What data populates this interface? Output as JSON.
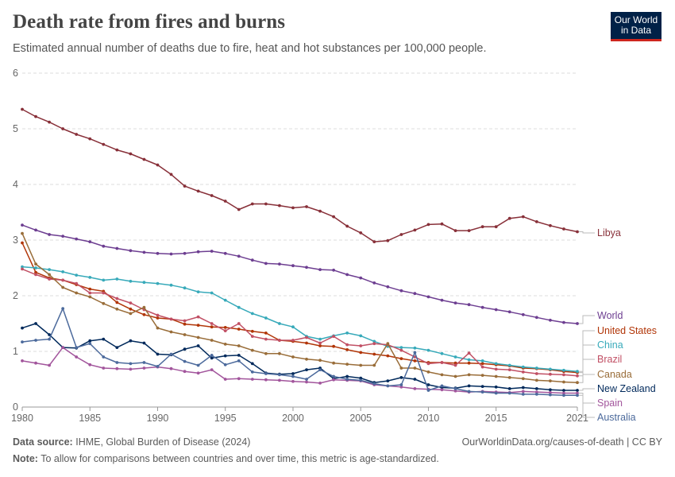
{
  "header": {
    "title": "Death rate from fires and burns",
    "subtitle": "Estimated annual number of deaths due to fire, heat and hot substances per 100,000 people."
  },
  "logo": {
    "line1": "Our World",
    "line2": "in Data"
  },
  "footer": {
    "source_label": "Data source:",
    "source_text": "IHME, Global Burden of Disease (2024)",
    "url_text": "OurWorldinData.org/causes-of-death | CC BY",
    "note_label": "Note:",
    "note_text": "To allow for comparisons between countries and over time, this metric is age-standardized."
  },
  "chart_data": {
    "type": "line",
    "title": "Death rate from fires and burns",
    "ylim": [
      0,
      6
    ],
    "xlim": [
      1980,
      2021
    ],
    "y_ticks": [
      0,
      1,
      2,
      3,
      4,
      5,
      6
    ],
    "x_ticks": [
      1980,
      1985,
      1990,
      1995,
      2000,
      2005,
      2010,
      2015,
      2021
    ],
    "grid": true,
    "legend": "right-end labels",
    "x": [
      1980,
      1981,
      1982,
      1983,
      1984,
      1985,
      1986,
      1987,
      1988,
      1989,
      1990,
      1991,
      1992,
      1993,
      1994,
      1995,
      1996,
      1997,
      1998,
      1999,
      2000,
      2001,
      2002,
      2003,
      2004,
      2005,
      2006,
      2007,
      2008,
      2009,
      2010,
      2011,
      2012,
      2013,
      2014,
      2015,
      2016,
      2017,
      2018,
      2019,
      2020,
      2021
    ],
    "series": [
      {
        "name": "Libya",
        "color": "#883039",
        "values": [
          5.35,
          5.22,
          5.12,
          5.0,
          4.9,
          4.82,
          4.72,
          4.62,
          4.55,
          4.45,
          4.35,
          4.18,
          3.97,
          3.88,
          3.8,
          3.7,
          3.55,
          3.65,
          3.65,
          3.62,
          3.58,
          3.6,
          3.52,
          3.42,
          3.25,
          3.13,
          2.97,
          2.99,
          3.1,
          3.18,
          3.28,
          3.29,
          3.17,
          3.17,
          3.24,
          3.24,
          3.39,
          3.42,
          3.33,
          3.26,
          3.2,
          3.15
        ]
      },
      {
        "name": "World",
        "color": "#6d3e91",
        "values": [
          3.27,
          3.18,
          3.1,
          3.07,
          3.02,
          2.97,
          2.89,
          2.85,
          2.81,
          2.78,
          2.76,
          2.75,
          2.76,
          2.79,
          2.8,
          2.76,
          2.71,
          2.64,
          2.58,
          2.57,
          2.54,
          2.51,
          2.47,
          2.46,
          2.38,
          2.32,
          2.23,
          2.16,
          2.09,
          2.04,
          1.98,
          1.92,
          1.87,
          1.84,
          1.79,
          1.75,
          1.71,
          1.66,
          1.61,
          1.56,
          1.52,
          1.5
        ]
      },
      {
        "name": "United States",
        "color": "#b13507",
        "values": [
          2.95,
          2.42,
          2.32,
          2.28,
          2.2,
          2.12,
          2.08,
          1.88,
          1.76,
          1.66,
          1.6,
          1.58,
          1.49,
          1.47,
          1.44,
          1.43,
          1.4,
          1.36,
          1.33,
          1.2,
          1.18,
          1.15,
          1.1,
          1.09,
          1.03,
          0.98,
          0.95,
          0.92,
          0.87,
          0.83,
          0.8,
          0.8,
          0.79,
          0.79,
          0.78,
          0.76,
          0.74,
          0.7,
          0.69,
          0.67,
          0.64,
          0.62
        ]
      },
      {
        "name": "China",
        "color": "#38aaba",
        "values": [
          2.52,
          2.5,
          2.47,
          2.43,
          2.37,
          2.33,
          2.28,
          2.3,
          2.26,
          2.24,
          2.22,
          2.19,
          2.14,
          2.07,
          2.05,
          1.92,
          1.79,
          1.68,
          1.6,
          1.5,
          1.44,
          1.27,
          1.22,
          1.28,
          1.33,
          1.28,
          1.18,
          1.09,
          1.07,
          1.06,
          1.02,
          0.96,
          0.9,
          0.85,
          0.83,
          0.78,
          0.75,
          0.72,
          0.7,
          0.68,
          0.66,
          0.64
        ]
      },
      {
        "name": "Brazil",
        "color": "#c15065",
        "values": [
          2.48,
          2.38,
          2.3,
          2.28,
          2.22,
          2.05,
          2.05,
          1.95,
          1.87,
          1.75,
          1.65,
          1.58,
          1.55,
          1.62,
          1.5,
          1.37,
          1.5,
          1.27,
          1.22,
          1.2,
          1.2,
          1.25,
          1.15,
          1.27,
          1.12,
          1.1,
          1.14,
          1.12,
          1.02,
          0.9,
          0.78,
          0.8,
          0.75,
          0.97,
          0.72,
          0.68,
          0.67,
          0.63,
          0.6,
          0.59,
          0.58,
          0.56
        ]
      },
      {
        "name": "Canada",
        "color": "#996d39",
        "values": [
          3.12,
          2.57,
          2.38,
          2.15,
          2.05,
          1.98,
          1.86,
          1.76,
          1.68,
          1.79,
          1.42,
          1.35,
          1.3,
          1.25,
          1.2,
          1.13,
          1.1,
          1.02,
          0.96,
          0.96,
          0.9,
          0.86,
          0.84,
          0.79,
          0.77,
          0.75,
          0.75,
          1.14,
          0.7,
          0.7,
          0.63,
          0.58,
          0.55,
          0.58,
          0.57,
          0.55,
          0.53,
          0.51,
          0.48,
          0.47,
          0.45,
          0.44
        ]
      },
      {
        "name": "New Zealand",
        "color": "#00295b",
        "values": [
          1.42,
          1.5,
          1.3,
          1.07,
          1.06,
          1.19,
          1.22,
          1.07,
          1.19,
          1.15,
          0.95,
          0.94,
          1.04,
          1.1,
          0.88,
          0.92,
          0.93,
          0.78,
          0.61,
          0.59,
          0.6,
          0.67,
          0.7,
          0.51,
          0.55,
          0.52,
          0.44,
          0.47,
          0.53,
          0.5,
          0.4,
          0.35,
          0.34,
          0.38,
          0.37,
          0.36,
          0.33,
          0.35,
          0.33,
          0.31,
          0.3,
          0.3
        ]
      },
      {
        "name": "Spain",
        "color": "#a2559c",
        "values": [
          0.83,
          0.79,
          0.75,
          1.07,
          0.9,
          0.76,
          0.7,
          0.69,
          0.68,
          0.7,
          0.72,
          0.69,
          0.64,
          0.61,
          0.67,
          0.5,
          0.51,
          0.5,
          0.49,
          0.48,
          0.46,
          0.45,
          0.43,
          0.49,
          0.48,
          0.47,
          0.4,
          0.38,
          0.36,
          0.33,
          0.32,
          0.31,
          0.29,
          0.27,
          0.28,
          0.27,
          0.26,
          0.28,
          0.27,
          0.26,
          0.25,
          0.25
        ]
      },
      {
        "name": "Australia",
        "color": "#4c6a9c",
        "values": [
          1.17,
          1.2,
          1.22,
          1.77,
          1.07,
          1.14,
          0.9,
          0.8,
          0.78,
          0.8,
          0.73,
          0.95,
          0.82,
          0.75,
          0.93,
          0.76,
          0.83,
          0.63,
          0.6,
          0.58,
          0.55,
          0.5,
          0.67,
          0.55,
          0.5,
          0.48,
          0.42,
          0.38,
          0.4,
          0.98,
          0.3,
          0.38,
          0.33,
          0.28,
          0.27,
          0.25,
          0.25,
          0.23,
          0.23,
          0.22,
          0.21,
          0.21
        ]
      }
    ]
  }
}
